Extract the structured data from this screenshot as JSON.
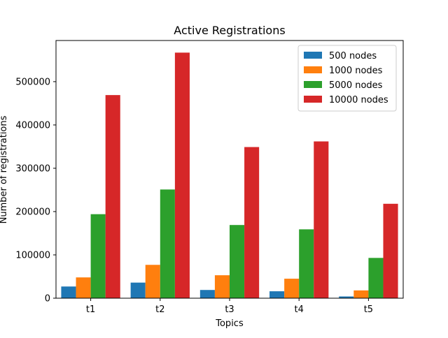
{
  "chart_data": {
    "type": "bar",
    "title": "Active Registrations",
    "xlabel": "Topics",
    "ylabel": "Number of registrations",
    "categories": [
      "t1",
      "t2",
      "t3",
      "t4",
      "t5"
    ],
    "series": [
      {
        "name": "500 nodes",
        "color": "#1f77b4",
        "values": [
          27000,
          36000,
          19000,
          16000,
          4000
        ]
      },
      {
        "name": "1000 nodes",
        "color": "#ff7f0e",
        "values": [
          48000,
          77000,
          53000,
          45000,
          18000
        ]
      },
      {
        "name": "5000 nodes",
        "color": "#2ca02c",
        "values": [
          194000,
          251000,
          169000,
          159000,
          93000
        ]
      },
      {
        "name": "10000 nodes",
        "color": "#d62728",
        "values": [
          469000,
          567000,
          349000,
          362000,
          218000
        ]
      }
    ],
    "yticks": [
      0,
      100000,
      200000,
      300000,
      400000,
      500000
    ],
    "ytick_labels": [
      "0",
      "100000",
      "200000",
      "300000",
      "400000",
      "500000"
    ],
    "ylim": [
      0,
      595000
    ],
    "grid": false,
    "legend_position": "top-right"
  }
}
